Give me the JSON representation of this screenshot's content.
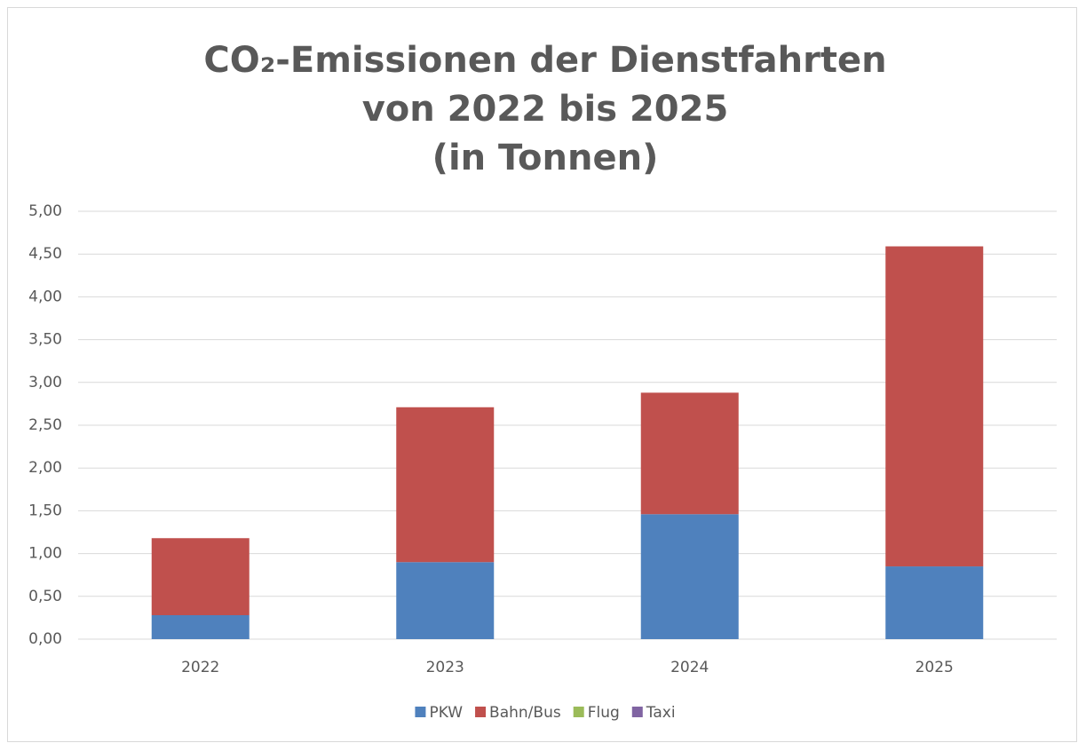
{
  "chart_data": {
    "type": "stacked-bar",
    "title": [
      "CO₂-Emissionen der Dienstfahrten",
      "von 2022 bis 2025",
      "(in Tonnen)"
    ],
    "categories": [
      "2022",
      "2023",
      "2024",
      "2025"
    ],
    "series": [
      {
        "name": "PKW",
        "color": "#4f81bd",
        "values": [
          0.28,
          0.9,
          1.46,
          0.85
        ]
      },
      {
        "name": "Bahn/Bus",
        "color": "#c0504d",
        "values": [
          0.9,
          1.81,
          1.42,
          3.74
        ]
      },
      {
        "name": "Flug",
        "color": "#9bbb59",
        "values": [
          0,
          0,
          0,
          0
        ]
      },
      {
        "name": "Taxi",
        "color": "#8064a2",
        "values": [
          0,
          0,
          0,
          0
        ]
      }
    ],
    "ylim": [
      0,
      5
    ],
    "yticks": [
      {
        "value": 0,
        "label": "0,00"
      },
      {
        "value": 0.5,
        "label": "0,50"
      },
      {
        "value": 1,
        "label": "1,00"
      },
      {
        "value": 1.5,
        "label": "1,50"
      },
      {
        "value": 2,
        "label": "2,00"
      },
      {
        "value": 2.5,
        "label": "2,50"
      },
      {
        "value": 3,
        "label": "3,00"
      },
      {
        "value": 3.5,
        "label": "3,50"
      },
      {
        "value": 4,
        "label": "4,00"
      },
      {
        "value": 4.5,
        "label": "4,50"
      },
      {
        "value": 5,
        "label": "5,00"
      }
    ],
    "grid": true,
    "legend": "bottom"
  }
}
